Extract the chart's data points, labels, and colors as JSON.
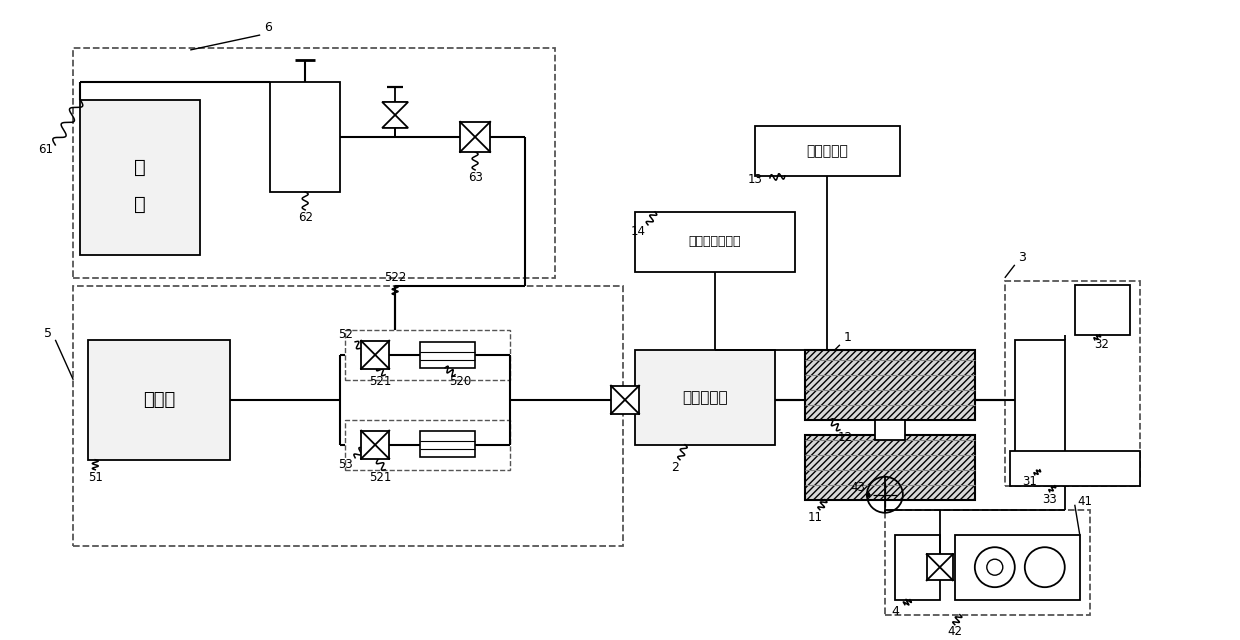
{
  "bg_color": "#ffffff",
  "lc": "#000000",
  "labels": {
    "qi_ping": "气瓶",
    "ping_liu_beng": "平流泵",
    "liu_ti_jia_re_qi": "流体加热器",
    "yan_kuai_jia_re_qi": "岩块加热器",
    "wen_du_chuan_gan_qi": "温度传感器组件"
  }
}
